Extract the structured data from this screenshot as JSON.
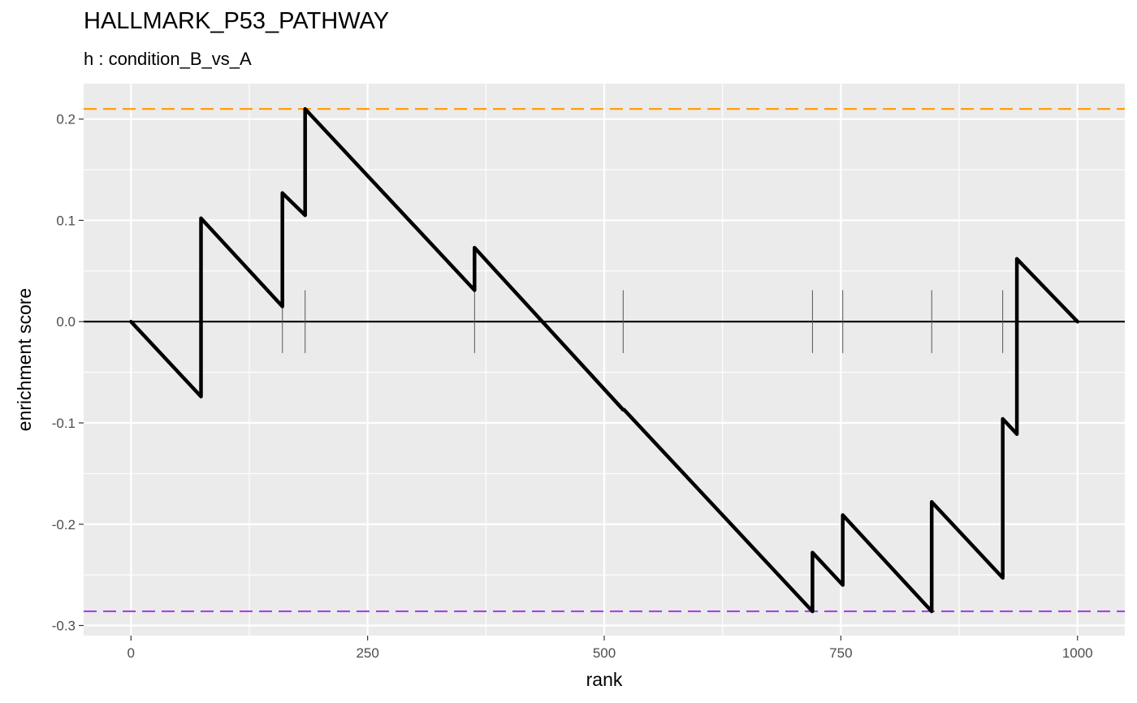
{
  "chart_data": {
    "type": "line",
    "title": "HALLMARK_P53_PATHWAY",
    "subtitle": "h : condition_B_vs_A",
    "xlabel": "rank",
    "ylabel": "enrichment score",
    "xlim": [
      -50,
      1050
    ],
    "ylim": [
      -0.31,
      0.235
    ],
    "x_ticks": [
      0,
      250,
      500,
      750,
      1000
    ],
    "x_tick_labels": [
      "0",
      "250",
      "500",
      "750",
      "1000"
    ],
    "y_ticks": [
      -0.3,
      -0.2,
      -0.1,
      0.0,
      0.1,
      0.2
    ],
    "y_tick_labels": [
      "-0.3",
      "-0.2",
      "-0.1",
      "0.0",
      "0.1",
      "0.2"
    ],
    "grid": true,
    "series": [
      {
        "values": [
          [
            0,
            0.0
          ],
          [
            74,
            -0.074
          ],
          [
            74,
            0.102
          ],
          [
            160,
            0.015
          ],
          [
            160,
            0.127
          ],
          [
            184,
            0.105
          ],
          [
            184,
            0.21
          ],
          [
            363,
            0.031
          ],
          [
            363,
            0.073
          ],
          [
            520,
            -0.087
          ],
          [
            521,
            -0.087
          ],
          [
            720,
            -0.286
          ],
          [
            720,
            -0.228
          ],
          [
            752,
            -0.26
          ],
          [
            752,
            -0.191
          ],
          [
            846,
            -0.286
          ],
          [
            846,
            -0.178
          ],
          [
            921,
            -0.253
          ],
          [
            921,
            -0.096
          ],
          [
            936,
            -0.111
          ],
          [
            936,
            0.062
          ],
          [
            1000,
            0.0
          ]
        ],
        "color": "#000000"
      }
    ],
    "gene_ranks": [
      160,
      184,
      363,
      520,
      720,
      752,
      846,
      921,
      936
    ],
    "reference_lines": [
      {
        "y": 0.21,
        "color": "#FF9900",
        "style": "dashed"
      },
      {
        "y": -0.286,
        "color": "#AA44DD",
        "style": "dashed"
      },
      {
        "y": 0.0,
        "color": "#000000",
        "style": "solid"
      }
    ],
    "colors": {
      "panel_background": "#EBEBEB",
      "grid": "#FFFFFF"
    }
  }
}
